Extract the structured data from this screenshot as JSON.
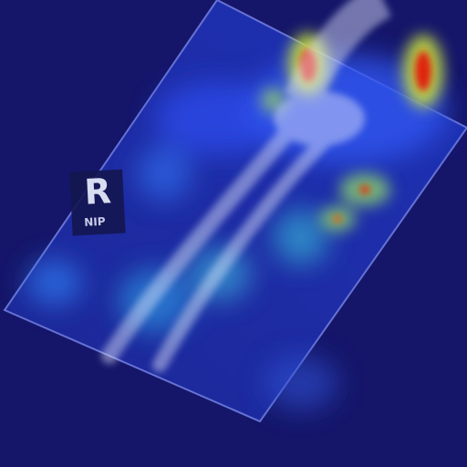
{
  "marker": {
    "letter": "R",
    "text": "NIP"
  }
}
